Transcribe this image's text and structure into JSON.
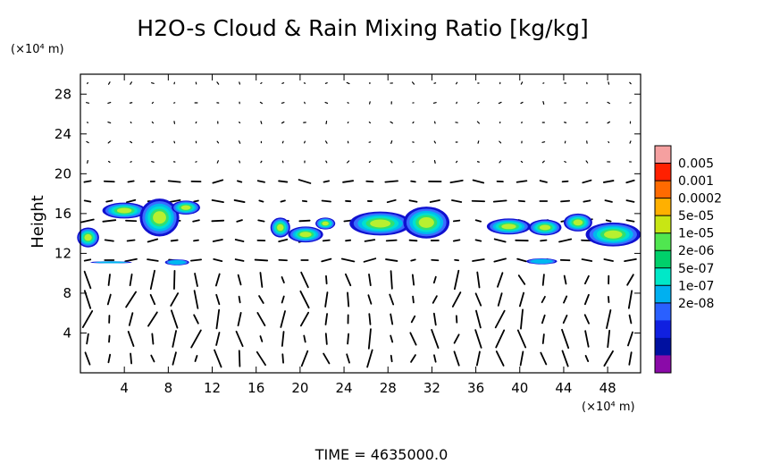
{
  "chart_data": {
    "type": "heatmap",
    "title": "H2O-s Cloud & Rain Mixing Ratio [kg/kg]",
    "ylabel": "Height",
    "y_unit": "(×10⁴ m)",
    "x_unit": "(×10⁴ m)",
    "xlim": [
      0,
      51
    ],
    "ylim": [
      0,
      30
    ],
    "x_ticks": [
      "4",
      "8",
      "12",
      "16",
      "20",
      "24",
      "28",
      "32",
      "36",
      "40",
      "44",
      "48"
    ],
    "y_ticks": [
      "4",
      "8",
      "12",
      "16",
      "20",
      "24",
      "28"
    ],
    "legend_position": "right",
    "colorbar": {
      "labels": [
        "0.005",
        "0.001",
        "0.0002",
        "5e-05",
        "1e-05",
        "2e-06",
        "5e-07",
        "1e-07",
        "2e-08"
      ],
      "colors": [
        "#f5a0a0",
        "#ff2000",
        "#ff6a00",
        "#ffb000",
        "#c8e614",
        "#50e650",
        "#00d06a",
        "#00e8c8",
        "#00b0f0",
        "#2a60ff",
        "#1020e0",
        "#0010a0",
        "#8a0aa8"
      ]
    },
    "cloud_patches": [
      {
        "x": 0.7,
        "y": 13.6,
        "rx": 1.0,
        "ry": 1.0
      },
      {
        "x": 4.0,
        "y": 16.3,
        "rx": 2.0,
        "ry": 0.8
      },
      {
        "x": 7.2,
        "y": 15.6,
        "rx": 1.8,
        "ry": 1.9
      },
      {
        "x": 9.6,
        "y": 16.6,
        "rx": 1.3,
        "ry": 0.7
      },
      {
        "x": 18.2,
        "y": 14.6,
        "rx": 0.9,
        "ry": 1.0
      },
      {
        "x": 20.5,
        "y": 13.9,
        "rx": 1.6,
        "ry": 0.8
      },
      {
        "x": 22.3,
        "y": 15.0,
        "rx": 0.9,
        "ry": 0.6
      },
      {
        "x": 27.3,
        "y": 15.0,
        "rx": 2.8,
        "ry": 1.2
      },
      {
        "x": 31.5,
        "y": 15.1,
        "rx": 2.1,
        "ry": 1.6
      },
      {
        "x": 39.0,
        "y": 14.7,
        "rx": 2.0,
        "ry": 0.8
      },
      {
        "x": 42.3,
        "y": 14.6,
        "rx": 1.5,
        "ry": 0.8
      },
      {
        "x": 45.3,
        "y": 15.1,
        "rx": 1.3,
        "ry": 0.9
      },
      {
        "x": 48.5,
        "y": 13.9,
        "rx": 2.5,
        "ry": 1.2
      },
      {
        "x": 8.8,
        "y": 11.1,
        "rx": 1.1,
        "ry": 0.3
      },
      {
        "x": 42.0,
        "y": 11.2,
        "rx": 1.4,
        "ry": 0.3
      },
      {
        "x": 2.8,
        "y": 11.1,
        "rx": 1.9,
        "ry": 0.1
      }
    ]
  },
  "footer": {
    "time_label": "TIME  =  4635000.0"
  }
}
